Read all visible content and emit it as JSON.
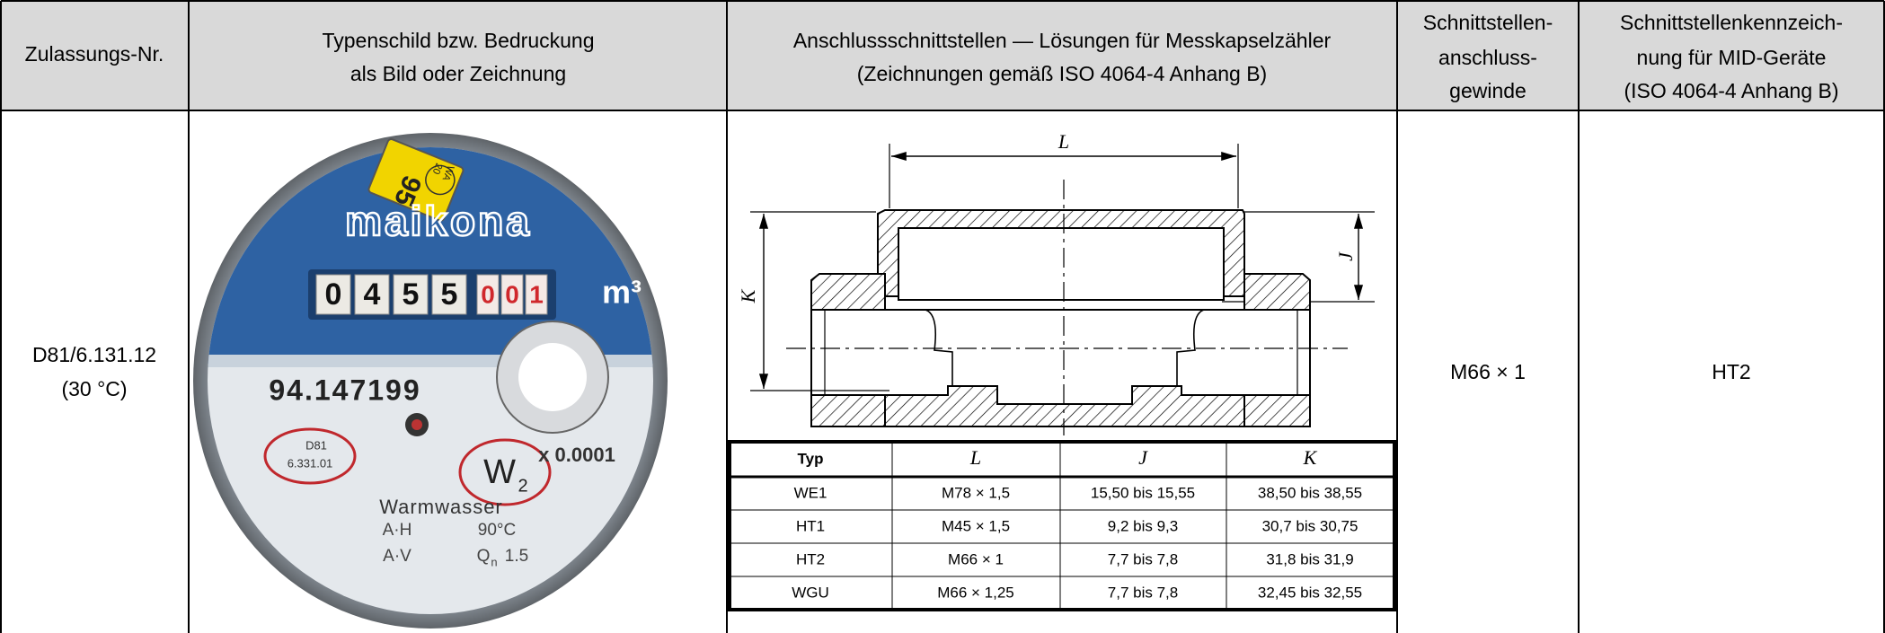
{
  "table": {
    "header": [
      [
        "Zulassungs-Nr."
      ],
      [
        "Typenschild bzw. Bedruckung",
        "als Bild oder Zeichnung"
      ],
      [
        "Anschlussschnittstellen — Lösungen für Messkapselzähler",
        "(Zeichnungen gemäß ISO 4064-4 Anhang B)"
      ],
      [
        "Schnittstellen-",
        "anschluss-",
        "gewinde"
      ],
      [
        "Schnittstellenkennzeich-",
        "nung für MID-Geräte",
        "(ISO 4064-4 Anhang B)"
      ]
    ],
    "row": {
      "approval_no": [
        "D81/6.131.12",
        "(30 °C)"
      ],
      "nameplate": {
        "sticker_number": "95",
        "sticker_mark": [
          "WA",
          "20"
        ],
        "brand": "maikona",
        "counter_black": [
          "0",
          "4",
          "5",
          "5"
        ],
        "counter_red": [
          "0",
          "0",
          "1"
        ],
        "unit": "m³",
        "serial": "94.147199",
        "approval_mark": [
          "D81",
          "6.331.01"
        ],
        "class_mark": [
          "W",
          "2"
        ],
        "resolution": "x 0.0001",
        "medium": "Warmwasser",
        "line_1": [
          "A·H",
          "90°C"
        ],
        "line_2": [
          "A·V",
          "Q",
          "n",
          "1.5"
        ]
      },
      "interface": {
        "dimension_labels": {
          "L": "L",
          "J": "J",
          "K": "K"
        },
        "table": {
          "header": [
            "Typ",
            "L",
            "J",
            "K"
          ],
          "rows": [
            [
              "WE1",
              "M78 × 1,5",
              "15,50 bis 15,55",
              "38,50 bis 38,55"
            ],
            [
              "HT1",
              "M45 × 1,5",
              "9,2 bis 9,3",
              "30,7 bis 30,75"
            ],
            [
              "HT2",
              "M66 × 1",
              "7,7 bis 7,8",
              "31,8 bis 31,9"
            ],
            [
              "WGU",
              "M66 × 1,25",
              "7,7 bis 7,8",
              "32,45 bis 32,55"
            ]
          ]
        }
      },
      "thread": "M66 × 1",
      "mid_marking": "HT2"
    }
  }
}
